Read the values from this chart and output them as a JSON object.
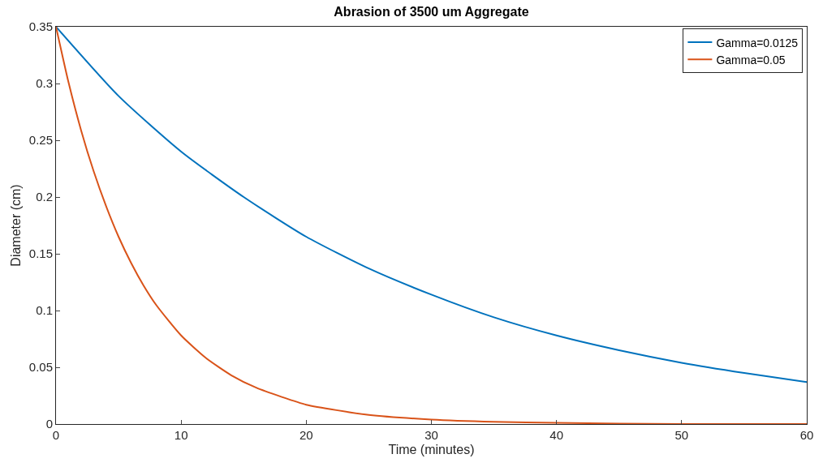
{
  "chart_data": {
    "type": "line",
    "title": "Abrasion of 3500 um Aggregate",
    "xlabel": "Time (minutes)",
    "ylabel": "Diameter (cm)",
    "series": [
      {
        "name": "Gamma=0.0125",
        "color": "#0072bd",
        "x": [
          0,
          5,
          10,
          15,
          20,
          25,
          30,
          35,
          40,
          45,
          50,
          55,
          60
        ],
        "values": [
          0.35,
          0.289,
          0.24,
          0.2,
          0.165,
          0.137,
          0.114,
          0.094,
          0.078,
          0.065,
          0.054,
          0.045,
          0.037
        ]
      },
      {
        "name": "Gamma=0.05",
        "color": "#d95319",
        "x": [
          0,
          1,
          2,
          3,
          4,
          5,
          6,
          7,
          8,
          10,
          12,
          14,
          16,
          18,
          20,
          25,
          30,
          35,
          40,
          50,
          60
        ],
        "values": [
          0.35,
          0.301,
          0.259,
          0.223,
          0.192,
          0.165,
          0.142,
          0.122,
          0.105,
          0.078,
          0.058,
          0.043,
          0.032,
          0.024,
          0.017,
          0.008,
          0.004,
          0.002,
          0.001,
          0,
          0
        ]
      }
    ],
    "xlim": [
      0,
      60
    ],
    "xticks": [
      0,
      10,
      20,
      30,
      40,
      50,
      60
    ],
    "ylim": [
      0,
      0.35
    ],
    "yticks": [
      0,
      0.05,
      0.1,
      0.15,
      0.2,
      0.25,
      0.3,
      0.35
    ],
    "legend": "top right",
    "grid": false,
    "marker": "none",
    "line_style": "solid"
  }
}
